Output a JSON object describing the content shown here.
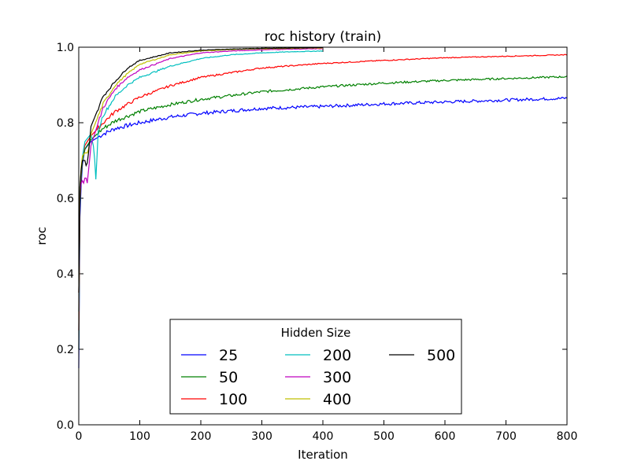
{
  "chart_data": {
    "type": "line",
    "title": "roc history (train)",
    "xlabel": "Iteration",
    "ylabel": "roc",
    "xlim": [
      0,
      800
    ],
    "ylim": [
      0.0,
      1.0
    ],
    "xticks": [
      "0",
      "100",
      "200",
      "300",
      "400",
      "500",
      "600",
      "700",
      "800"
    ],
    "xtick_values": [
      0,
      100,
      200,
      300,
      400,
      500,
      600,
      700,
      800
    ],
    "yticks": [
      "0.0",
      "0.2",
      "0.4",
      "0.6",
      "0.8",
      "1.0"
    ],
    "ytick_values": [
      0.0,
      0.2,
      0.4,
      0.6,
      0.8,
      1.0
    ],
    "legend": {
      "title": "Hidden Size",
      "placement": "lower-center",
      "ncol": 3
    },
    "series": [
      {
        "name": "25",
        "color": "#0000ff",
        "x": [
          0,
          2,
          5,
          10,
          20,
          40,
          60,
          100,
          150,
          200,
          300,
          400,
          500,
          600,
          700,
          800
        ],
        "y": [
          0.15,
          0.55,
          0.68,
          0.73,
          0.75,
          0.77,
          0.785,
          0.8,
          0.815,
          0.825,
          0.838,
          0.843,
          0.85,
          0.855,
          0.86,
          0.865
        ]
      },
      {
        "name": "50",
        "color": "#008000",
        "x": [
          0,
          2,
          5,
          10,
          20,
          40,
          60,
          100,
          150,
          200,
          300,
          400,
          500,
          600,
          700,
          800
        ],
        "y": [
          0.2,
          0.58,
          0.69,
          0.73,
          0.755,
          0.785,
          0.805,
          0.83,
          0.848,
          0.862,
          0.882,
          0.895,
          0.905,
          0.912,
          0.917,
          0.922
        ]
      },
      {
        "name": "100",
        "color": "#ff0000",
        "x": [
          0,
          2,
          5,
          10,
          20,
          40,
          60,
          100,
          150,
          200,
          300,
          400,
          500,
          600,
          700,
          800
        ],
        "y": [
          0.25,
          0.6,
          0.7,
          0.74,
          0.765,
          0.8,
          0.83,
          0.868,
          0.898,
          0.92,
          0.945,
          0.957,
          0.965,
          0.972,
          0.976,
          0.98
        ]
      },
      {
        "name": "200",
        "color": "#00bfbf",
        "x": [
          0,
          2,
          5,
          10,
          20,
          25,
          28,
          32,
          40,
          60,
          80,
          100,
          150,
          200,
          250,
          300,
          350,
          400
        ],
        "y": [
          0.3,
          0.62,
          0.7,
          0.75,
          0.77,
          0.73,
          0.65,
          0.78,
          0.82,
          0.87,
          0.9,
          0.92,
          0.95,
          0.97,
          0.98,
          0.985,
          0.988,
          0.99
        ]
      },
      {
        "name": "300",
        "color": "#bf00bf",
        "x": [
          0,
          2,
          5,
          8,
          11,
          14,
          20,
          30,
          40,
          60,
          80,
          100,
          150,
          200,
          250,
          300,
          350,
          400
        ],
        "y": [
          0.35,
          0.62,
          0.65,
          0.64,
          0.66,
          0.64,
          0.74,
          0.79,
          0.84,
          0.89,
          0.92,
          0.94,
          0.97,
          0.985,
          0.99,
          0.993,
          0.995,
          0.996
        ]
      },
      {
        "name": "400",
        "color": "#bfbf00",
        "x": [
          0,
          2,
          5,
          10,
          15,
          20,
          30,
          40,
          60,
          80,
          100,
          150,
          200,
          250,
          300,
          350,
          400
        ],
        "y": [
          0.35,
          0.63,
          0.71,
          0.72,
          0.72,
          0.77,
          0.81,
          0.85,
          0.9,
          0.93,
          0.955,
          0.98,
          0.99,
          0.994,
          0.996,
          0.997,
          0.998
        ]
      },
      {
        "name": "500",
        "color": "#000000",
        "x": [
          0,
          2,
          5,
          10,
          13,
          16,
          20,
          30,
          40,
          60,
          80,
          100,
          150,
          200,
          250,
          300,
          350,
          400
        ],
        "y": [
          0.35,
          0.63,
          0.7,
          0.7,
          0.68,
          0.72,
          0.79,
          0.83,
          0.87,
          0.91,
          0.945,
          0.965,
          0.985,
          0.992,
          0.995,
          0.997,
          0.998,
          0.999
        ]
      }
    ]
  }
}
